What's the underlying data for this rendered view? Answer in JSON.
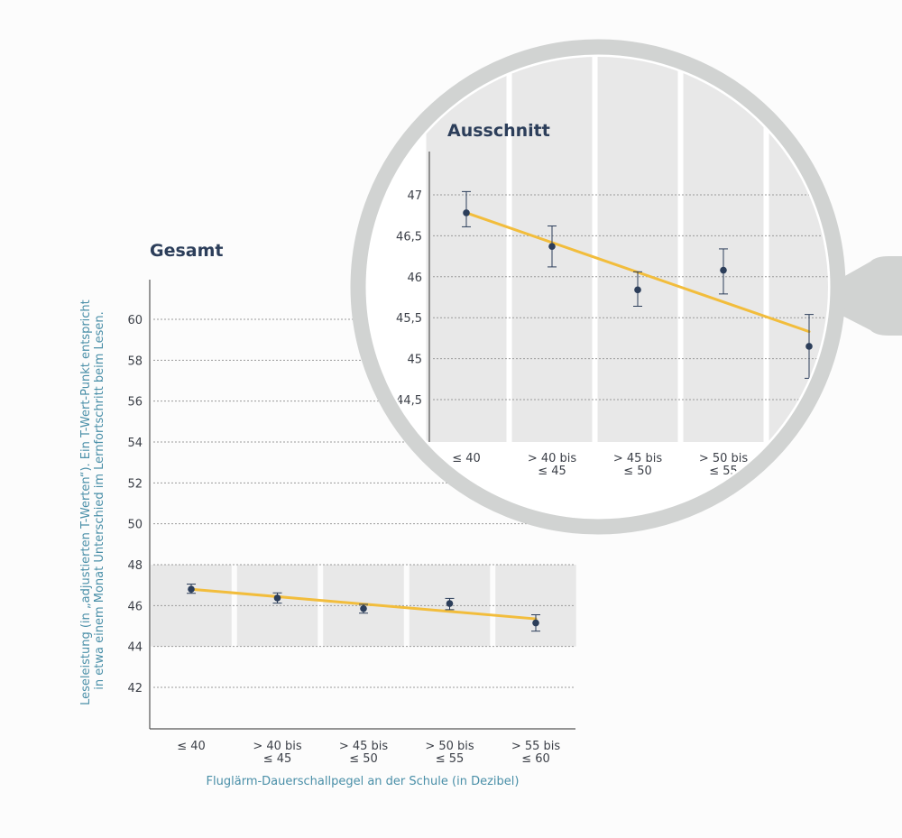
{
  "colors": {
    "band": "#e8e8e8",
    "trend": "#f2bd3c",
    "point": "#2c3e5a",
    "axis": "#555555",
    "grid": "#9a9a9a",
    "lens": "#d1d3d2",
    "title": "#2c3e5a",
    "axis_title": "#4a8fa8"
  },
  "chart_data": [
    {
      "id": "gesamt",
      "type": "scatter",
      "title": "Gesamt",
      "ylabel_lines": [
        "Leseleistung (in „adjustierten T-Werten“). Ein T-Wert-Punkt entspricht",
        "in etwa einem Monat Unterschied im Lernfortschritt beim Lesen."
      ],
      "xlabel": "Fluglärm-Dauerschallpegel an der Schule (in Dezibel)",
      "categories": [
        [
          "≤ 40"
        ],
        [
          "> 40 bis",
          "≤ 45"
        ],
        [
          "> 45 bis",
          "≤ 50"
        ],
        [
          "> 50 bis",
          "≤ 55"
        ],
        [
          "> 55 bis",
          "≤ 60"
        ]
      ],
      "yticks": [
        42,
        44,
        46,
        48,
        50,
        52,
        54,
        56,
        58,
        60
      ],
      "ytick_labels": [
        "42",
        "44",
        "46",
        "48",
        "50",
        "52",
        "54",
        "56",
        "58",
        "60"
      ],
      "ylim": [
        40,
        62
      ],
      "highlight_band": [
        44,
        48
      ],
      "grid": true,
      "values": [
        46.8,
        46.37,
        45.85,
        46.1,
        45.15
      ],
      "err_low": [
        46.6,
        46.12,
        45.63,
        45.8,
        44.75
      ],
      "err_high": [
        47.05,
        46.62,
        46.06,
        46.35,
        45.55
      ],
      "trend": [
        46.8,
        45.35
      ]
    },
    {
      "id": "ausschnitt",
      "type": "scatter",
      "title": "Ausschnitt",
      "categories": [
        [
          "≤ 40"
        ],
        [
          "> 40 bis",
          "≤ 45"
        ],
        [
          "> 45 bis",
          "≤ 50"
        ],
        [
          "> 50 bis",
          "≤ 55"
        ],
        [
          "",
          ""
        ]
      ],
      "yticks": [
        44.5,
        45,
        45.5,
        46,
        46.5,
        47
      ],
      "ytick_labels": [
        "44,5",
        "45",
        "45,5",
        "46",
        "46,5",
        "47"
      ],
      "ylim": [
        44,
        47.5
      ],
      "grid": true,
      "values": [
        46.78,
        46.37,
        45.84,
        46.08,
        45.15
      ],
      "err_low": [
        46.61,
        46.12,
        45.64,
        45.79,
        44.76
      ],
      "err_high": [
        47.04,
        46.62,
        46.06,
        46.34,
        45.54
      ],
      "trend": [
        46.78,
        45.33
      ]
    }
  ]
}
